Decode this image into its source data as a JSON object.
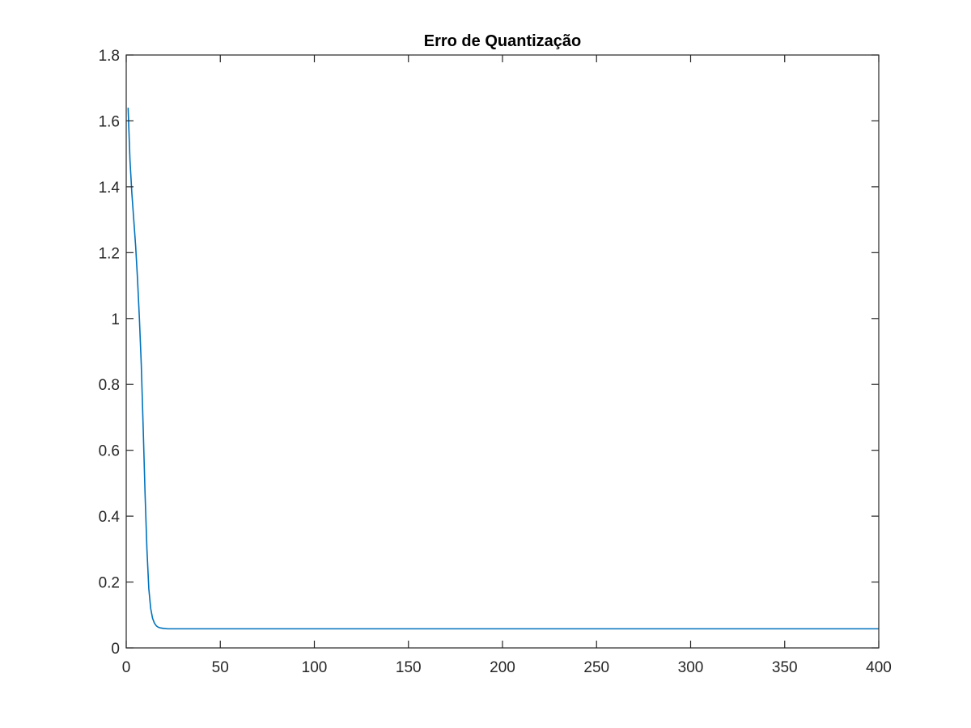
{
  "chart_data": {
    "type": "line",
    "title": "Erro de Quantização",
    "xlabel": "",
    "ylabel": "",
    "xlim": [
      0,
      400
    ],
    "ylim": [
      0,
      1.8
    ],
    "x_ticks": [
      0,
      50,
      100,
      150,
      200,
      250,
      300,
      350,
      400
    ],
    "x_tick_labels": [
      "0",
      "50",
      "100",
      "150",
      "200",
      "250",
      "300",
      "350",
      "400"
    ],
    "y_ticks": [
      0,
      0.2,
      0.4,
      0.6,
      0.8,
      1,
      1.2,
      1.4,
      1.6,
      1.8
    ],
    "y_tick_labels": [
      "0",
      "0.2",
      "0.4",
      "0.6",
      "0.8",
      "1",
      "1.2",
      "1.4",
      "1.6",
      "1.8"
    ],
    "grid": false,
    "legend": "none",
    "series": [
      {
        "color": "#0072bd",
        "x": [
          1,
          2,
          3,
          4,
          5,
          6,
          7,
          8,
          9,
          10,
          11,
          12,
          13,
          14,
          15,
          16,
          17,
          18,
          20,
          22,
          25,
          30,
          40,
          60,
          100,
          150,
          200,
          250,
          300,
          350,
          400
        ],
        "y": [
          1.64,
          1.48,
          1.38,
          1.3,
          1.22,
          1.12,
          1.0,
          0.86,
          0.67,
          0.47,
          0.3,
          0.18,
          0.12,
          0.09,
          0.075,
          0.067,
          0.063,
          0.061,
          0.059,
          0.058,
          0.058,
          0.058,
          0.058,
          0.058,
          0.058,
          0.058,
          0.058,
          0.058,
          0.058,
          0.058,
          0.058
        ]
      }
    ]
  },
  "colors": {
    "axis": "#262626",
    "line": "#0072bd",
    "background": "#ffffff"
  }
}
